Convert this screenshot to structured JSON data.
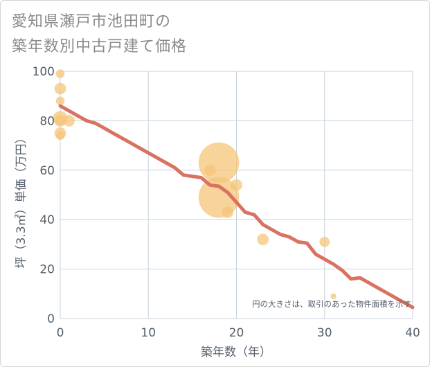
{
  "title": {
    "line1": "愛知県瀬戸市池田町の",
    "line2": "築年数別中古戸建て価格"
  },
  "colors": {
    "line": "#d97260",
    "bubble": "#f5c57a",
    "grid": "#c8d3de",
    "text": "#555f6b"
  },
  "chart_data": {
    "type": "scatter",
    "xlabel": "築年数（年）",
    "ylabel": "坪（3.3㎡）単価（万円）",
    "xlim": [
      0,
      40
    ],
    "ylim": [
      0,
      100
    ],
    "xticks": [
      0,
      10,
      20,
      30,
      40
    ],
    "yticks": [
      0,
      20,
      40,
      60,
      80,
      100
    ],
    "grid": true,
    "annotation": "円の大きさは、取引のあった物件面積を示す",
    "bubbles": [
      {
        "x": 0,
        "y": 99,
        "size": 3
      },
      {
        "x": 0,
        "y": 93,
        "size": 4
      },
      {
        "x": 0,
        "y": 88,
        "size": 3
      },
      {
        "x": 0,
        "y": 81,
        "size": 5
      },
      {
        "x": 0,
        "y": 80,
        "size": 4
      },
      {
        "x": 0,
        "y": 75,
        "size": 4
      },
      {
        "x": 0,
        "y": 74,
        "size": 3
      },
      {
        "x": 1,
        "y": 80,
        "size": 4
      },
      {
        "x": 17,
        "y": 60,
        "size": 4
      },
      {
        "x": 18,
        "y": 63,
        "size": 14
      },
      {
        "x": 18,
        "y": 49,
        "size": 14
      },
      {
        "x": 20,
        "y": 54,
        "size": 4
      },
      {
        "x": 19,
        "y": 43,
        "size": 4
      },
      {
        "x": 23,
        "y": 32,
        "size": 4
      },
      {
        "x": 30,
        "y": 31,
        "size": 3.5
      },
      {
        "x": 31,
        "y": 9,
        "size": 2
      }
    ],
    "trend": {
      "x": [
        0,
        1,
        2,
        3,
        4,
        5,
        6,
        7,
        8,
        9,
        10,
        11,
        12,
        13,
        14,
        15,
        16,
        17,
        18,
        19,
        20,
        21,
        22,
        23,
        24,
        25,
        26,
        27,
        28,
        29,
        30,
        31,
        32,
        33,
        34,
        35,
        36,
        37,
        38,
        39,
        40
      ],
      "y": [
        86,
        84,
        82,
        80,
        79,
        77,
        75,
        73,
        71,
        69,
        67,
        65,
        63,
        61,
        58,
        57.5,
        57,
        54,
        53.5,
        51,
        47,
        43,
        42,
        38,
        36,
        34,
        33,
        31,
        30.5,
        26,
        24,
        22,
        19.5,
        16,
        16.5,
        14.5,
        12.5,
        10.5,
        8.5,
        6.5,
        4.5
      ]
    }
  }
}
